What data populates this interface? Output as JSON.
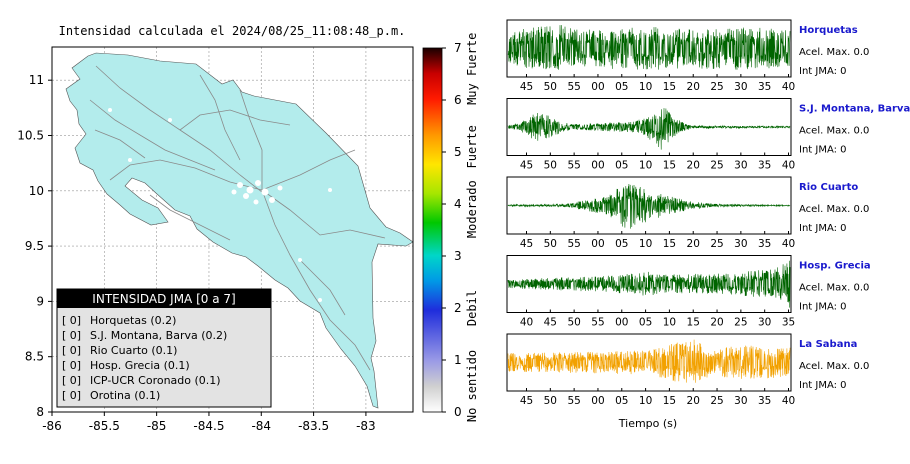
{
  "chart_data": [
    {
      "type": "map",
      "title": "Intensidad calculada el 2024/08/25_11:08:48_p.m.",
      "x_ticks": [
        "-86",
        "-85.5",
        "-85",
        "-84.5",
        "-84",
        "-83.5",
        "-83"
      ],
      "y_ticks": [
        "8",
        "8.5",
        "9",
        "9.5",
        "10",
        "10.5",
        "11"
      ],
      "xlim": [
        -86,
        -82.55
      ],
      "ylim": [
        8,
        11.3
      ],
      "grid": true,
      "legend": {
        "title": "INTENSIDAD JMA [0 a 7]",
        "entries": [
          {
            "level": "[ 0]",
            "name": "Horquetas (0.2)"
          },
          {
            "level": "[ 0]",
            "name": "S.J. Montana, Barva (0.2)"
          },
          {
            "level": "[ 0]",
            "name": "Rio Cuarto (0.1)"
          },
          {
            "level": "[ 0]",
            "name": "Hosp. Grecia (0.1)"
          },
          {
            "level": "[ 0]",
            "name": "ICP-UCR Coronado (0.1)"
          },
          {
            "level": "[ 0]",
            "name": "Orotina (0.1)"
          }
        ]
      },
      "colorbar": {
        "ticks": [
          "0",
          "1",
          "2",
          "3",
          "4",
          "5",
          "6",
          "7"
        ],
        "range": [
          0,
          7
        ],
        "labels": [
          {
            "text": "No sentido",
            "value": 0.5
          },
          {
            "text": "Debil",
            "value": 2.0
          },
          {
            "text": "Moderado",
            "value": 3.9
          },
          {
            "text": "Fuerte",
            "value": 5.1
          },
          {
            "text": "Muy Fuerte",
            "value": 6.6
          }
        ]
      },
      "colors": {
        "land": "#b3ecec",
        "roads": "#8a8a8a"
      }
    },
    {
      "type": "line",
      "xlabel": "Tiempo (s)",
      "traces": [
        {
          "station": "Horquetas",
          "accel": "Acel. Max. 0.0",
          "jma": "Int JMA: 0",
          "color": "#006400",
          "ticks": [
            "45",
            "50",
            "55",
            "00",
            "05",
            "10",
            "15",
            "20",
            "25",
            "30",
            "35",
            "40"
          ],
          "envelope": [
            [
              0,
              0.5
            ],
            [
              0.05,
              0.75
            ],
            [
              0.2,
              0.9
            ],
            [
              0.24,
              0.7
            ],
            [
              0.35,
              0.75
            ],
            [
              0.5,
              0.8
            ],
            [
              0.7,
              0.75
            ],
            [
              0.85,
              0.8
            ],
            [
              1,
              0.7
            ]
          ]
        },
        {
          "station": "S.J. Montana, Barva",
          "accel": "Acel. Max. 0.0",
          "jma": "Int JMA: 0",
          "color": "#006400",
          "ticks": [
            "45",
            "50",
            "55",
            "00",
            "05",
            "10",
            "15",
            "20",
            "25",
            "30",
            "35",
            "40"
          ],
          "envelope": [
            [
              0,
              0.05
            ],
            [
              0.05,
              0.2
            ],
            [
              0.1,
              0.55
            ],
            [
              0.15,
              0.4
            ],
            [
              0.22,
              0.1
            ],
            [
              0.45,
              0.2
            ],
            [
              0.52,
              0.55
            ],
            [
              0.55,
              0.95
            ],
            [
              0.58,
              0.4
            ],
            [
              0.65,
              0.05
            ],
            [
              1,
              0.03
            ]
          ]
        },
        {
          "station": "Rio Cuarto",
          "accel": "Acel. Max. 0.0",
          "jma": "Int JMA: 0",
          "color": "#006400",
          "ticks": [
            "45",
            "50",
            "55",
            "00",
            "05",
            "10",
            "15",
            "20",
            "25",
            "30",
            "35",
            "40"
          ],
          "envelope": [
            [
              0,
              0.03
            ],
            [
              0.2,
              0.05
            ],
            [
              0.3,
              0.25
            ],
            [
              0.37,
              0.45
            ],
            [
              0.42,
              0.95
            ],
            [
              0.47,
              0.7
            ],
            [
              0.55,
              0.4
            ],
            [
              0.65,
              0.15
            ],
            [
              0.75,
              0.05
            ],
            [
              1,
              0.02
            ]
          ]
        },
        {
          "station": "Hosp. Grecia",
          "accel": "Acel. Max. 0.0",
          "jma": "Int JMA: 0",
          "color": "#006400",
          "ticks": [
            "40",
            "45",
            "50",
            "55",
            "00",
            "05",
            "10",
            "15",
            "20",
            "25",
            "30",
            "35"
          ],
          "envelope": [
            [
              0,
              0.15
            ],
            [
              0.2,
              0.25
            ],
            [
              0.35,
              0.3
            ],
            [
              0.5,
              0.45
            ],
            [
              0.55,
              0.35
            ],
            [
              0.8,
              0.4
            ],
            [
              0.95,
              0.6
            ],
            [
              1,
              0.9
            ]
          ]
        },
        {
          "station": "La Sabana",
          "accel": "Acel. Max. 0.0",
          "jma": "Int JMA: 0",
          "color": "#f2a100",
          "ticks": [
            "45",
            "50",
            "55",
            "00",
            "05",
            "10",
            "15",
            "20",
            "25",
            "30",
            "35",
            "40"
          ],
          "envelope": [
            [
              0,
              0.35
            ],
            [
              0.3,
              0.4
            ],
            [
              0.5,
              0.45
            ],
            [
              0.6,
              0.75
            ],
            [
              0.66,
              0.85
            ],
            [
              0.72,
              0.5
            ],
            [
              0.82,
              0.65
            ],
            [
              0.92,
              0.6
            ],
            [
              1,
              0.55
            ]
          ]
        }
      ]
    }
  ]
}
